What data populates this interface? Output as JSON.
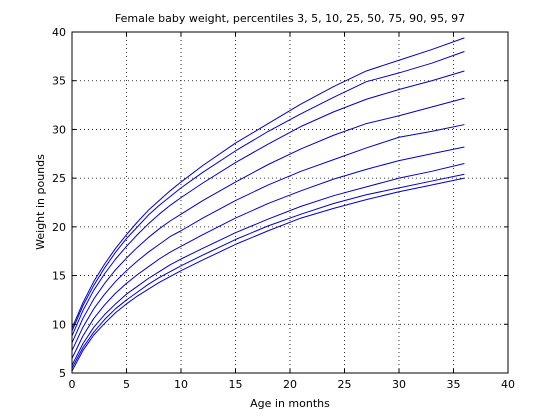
{
  "chart_data": {
    "type": "line",
    "title": "Female baby weight, percentiles 3, 5, 10, 25, 50, 75, 90, 95, 97",
    "xlabel": "Age in months",
    "ylabel": "Weight in pounds",
    "xlim": [
      0,
      40
    ],
    "ylim": [
      5,
      40
    ],
    "xticks": [
      0,
      5,
      10,
      15,
      20,
      25,
      30,
      35,
      40
    ],
    "yticks": [
      5,
      10,
      15,
      20,
      25,
      30,
      35,
      40
    ],
    "grid": true,
    "grid_style": "dotted",
    "line_color": "#0000cc",
    "x": [
      0,
      1,
      2,
      3,
      4,
      5,
      6,
      7,
      8,
      9,
      10,
      12,
      15,
      18,
      21,
      24,
      27,
      30,
      33,
      36
    ],
    "series": [
      {
        "values": [
          5.2,
          7.3,
          8.9,
          10.1,
          11.2,
          12.1,
          12.9,
          13.6,
          14.3,
          14.9,
          15.5,
          16.6,
          18.2,
          19.6,
          20.9,
          21.9,
          22.8,
          23.6,
          24.3,
          25.0
        ]
      },
      {
        "values": [
          5.5,
          7.6,
          9.2,
          10.5,
          11.6,
          12.5,
          13.3,
          14.1,
          14.8,
          15.4,
          16.0,
          17.1,
          18.7,
          20.1,
          21.3,
          22.4,
          23.3,
          24.0,
          24.7,
          25.4
        ]
      },
      {
        "values": [
          5.8,
          8.0,
          9.7,
          11.0,
          12.1,
          13.1,
          13.9,
          14.7,
          15.4,
          16.1,
          16.7,
          17.8,
          19.4,
          20.8,
          22.1,
          23.2,
          24.1,
          25.0,
          25.7,
          26.5
        ]
      },
      {
        "values": [
          6.5,
          8.8,
          10.6,
          12.0,
          13.2,
          14.2,
          15.1,
          15.9,
          16.7,
          17.4,
          18.0,
          19.2,
          20.9,
          22.4,
          23.7,
          24.9,
          25.9,
          26.8,
          27.5,
          28.2
        ]
      },
      {
        "values": [
          7.3,
          9.7,
          11.6,
          13.1,
          14.4,
          15.5,
          16.5,
          17.4,
          18.2,
          19.0,
          19.6,
          20.9,
          22.7,
          24.3,
          25.7,
          26.9,
          28.1,
          29.2,
          29.8,
          30.5
        ]
      },
      {
        "values": [
          8.1,
          10.6,
          12.6,
          14.2,
          15.6,
          16.8,
          17.9,
          18.9,
          19.8,
          20.6,
          21.3,
          22.7,
          24.6,
          26.4,
          28.0,
          29.4,
          30.6,
          31.4,
          32.3,
          33.2
        ]
      },
      {
        "values": [
          8.8,
          11.4,
          13.5,
          15.2,
          16.7,
          18.0,
          19.2,
          20.3,
          21.3,
          22.2,
          23.0,
          24.5,
          26.6,
          28.5,
          30.3,
          31.8,
          33.1,
          34.1,
          35.0,
          36.0
        ]
      },
      {
        "values": [
          9.3,
          11.9,
          14.0,
          15.8,
          17.4,
          18.8,
          20.0,
          21.2,
          22.2,
          23.1,
          24.0,
          25.6,
          27.8,
          29.8,
          31.6,
          33.3,
          34.9,
          35.8,
          36.8,
          38.0
        ]
      },
      {
        "values": [
          9.6,
          12.2,
          14.4,
          16.2,
          17.8,
          19.2,
          20.5,
          21.7,
          22.7,
          23.7,
          24.6,
          26.3,
          28.6,
          30.6,
          32.6,
          34.4,
          36.0,
          37.1,
          38.2,
          39.4
        ]
      }
    ]
  }
}
